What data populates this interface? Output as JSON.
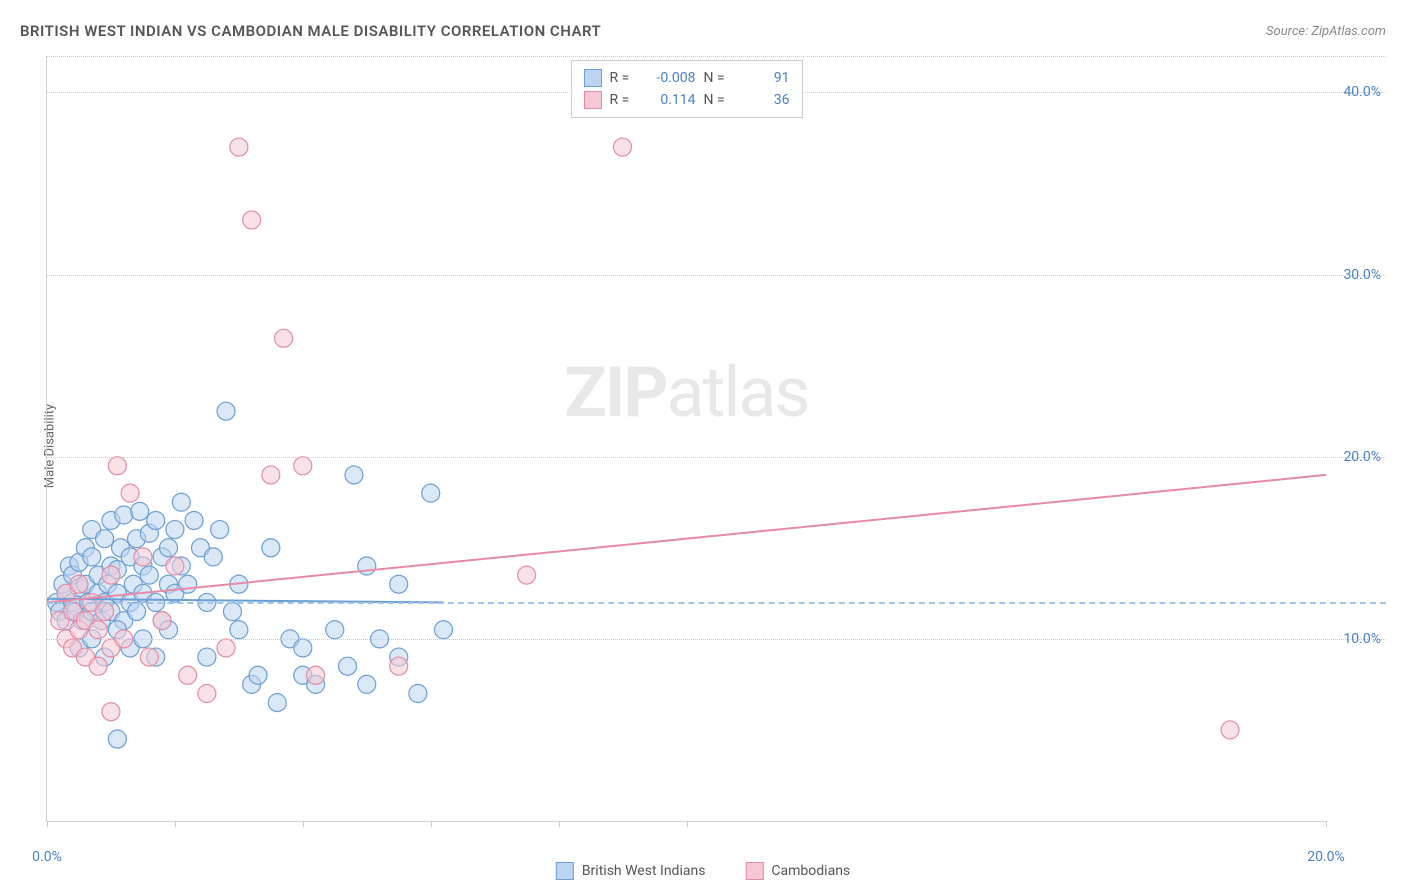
{
  "title": "BRITISH WEST INDIAN VS CAMBODIAN MALE DISABILITY CORRELATION CHART",
  "source": "Source: ZipAtlas.com",
  "watermark_bold": "ZIP",
  "watermark_light": "atlas",
  "y_axis_label": "Male Disability",
  "chart": {
    "type": "scatter",
    "xlim": [
      0,
      20
    ],
    "ylim": [
      0,
      42
    ],
    "x_ticks": [
      0,
      2,
      4,
      6,
      8,
      10,
      20
    ],
    "x_tick_labels": {
      "0": "0.0%",
      "20": "20.0%"
    },
    "y_gridlines": [
      10,
      20,
      30,
      40,
      42
    ],
    "y_tick_labels": {
      "10": "10.0%",
      "20": "20.0%",
      "30": "30.0%",
      "40": "40.0%"
    },
    "mean_line_y": 12.0,
    "background_color": "#ffffff",
    "grid_color": "#cccccc",
    "dash_color": "#9fc4e7",
    "marker_radius": 9,
    "marker_opacity": 0.55,
    "line_width": 2
  },
  "series": [
    {
      "name": "British West Indians",
      "color_fill": "#bcd4ef",
      "color_stroke": "#6a9fd4",
      "R": "-0.008",
      "N": "91",
      "trend": {
        "x1": 0,
        "y1": 12.2,
        "x2": 6.2,
        "y2": 12.0
      },
      "points": [
        [
          0.15,
          12.0
        ],
        [
          0.2,
          11.5
        ],
        [
          0.25,
          13.0
        ],
        [
          0.3,
          12.5
        ],
        [
          0.3,
          11.0
        ],
        [
          0.35,
          14.0
        ],
        [
          0.4,
          12.0
        ],
        [
          0.4,
          13.5
        ],
        [
          0.45,
          11.5
        ],
        [
          0.5,
          12.8
        ],
        [
          0.5,
          14.2
        ],
        [
          0.55,
          11.0
        ],
        [
          0.6,
          13.0
        ],
        [
          0.6,
          15.0
        ],
        [
          0.65,
          12.0
        ],
        [
          0.7,
          11.5
        ],
        [
          0.7,
          14.5
        ],
        [
          0.7,
          16.0
        ],
        [
          0.8,
          12.5
        ],
        [
          0.8,
          13.5
        ],
        [
          0.85,
          11.0
        ],
        [
          0.9,
          15.5
        ],
        [
          0.9,
          12.0
        ],
        [
          0.95,
          13.0
        ],
        [
          1.0,
          14.0
        ],
        [
          1.0,
          11.5
        ],
        [
          1.0,
          16.5
        ],
        [
          1.1,
          12.5
        ],
        [
          1.1,
          13.8
        ],
        [
          1.15,
          15.0
        ],
        [
          1.2,
          11.0
        ],
        [
          1.2,
          16.8
        ],
        [
          1.3,
          12.0
        ],
        [
          1.3,
          14.5
        ],
        [
          1.35,
          13.0
        ],
        [
          1.4,
          15.5
        ],
        [
          1.4,
          11.5
        ],
        [
          1.45,
          17.0
        ],
        [
          1.5,
          12.5
        ],
        [
          1.5,
          14.0
        ],
        [
          1.6,
          13.5
        ],
        [
          1.6,
          15.8
        ],
        [
          1.7,
          12.0
        ],
        [
          1.7,
          16.5
        ],
        [
          1.8,
          14.5
        ],
        [
          1.8,
          11.0
        ],
        [
          1.9,
          13.0
        ],
        [
          1.9,
          15.0
        ],
        [
          2.0,
          12.5
        ],
        [
          2.0,
          16.0
        ],
        [
          2.1,
          17.5
        ],
        [
          2.1,
          14.0
        ],
        [
          2.2,
          13.0
        ],
        [
          2.3,
          16.5
        ],
        [
          2.4,
          15.0
        ],
        [
          2.5,
          12.0
        ],
        [
          2.5,
          9.0
        ],
        [
          2.6,
          14.5
        ],
        [
          2.7,
          16.0
        ],
        [
          2.8,
          22.5
        ],
        [
          2.9,
          11.5
        ],
        [
          3.0,
          10.5
        ],
        [
          3.0,
          13.0
        ],
        [
          3.2,
          7.5
        ],
        [
          3.3,
          8.0
        ],
        [
          3.5,
          15.0
        ],
        [
          3.6,
          6.5
        ],
        [
          3.8,
          10.0
        ],
        [
          4.0,
          9.5
        ],
        [
          4.0,
          8.0
        ],
        [
          4.2,
          7.5
        ],
        [
          4.5,
          10.5
        ],
        [
          4.7,
          8.5
        ],
        [
          4.8,
          19.0
        ],
        [
          5.0,
          14.0
        ],
        [
          5.0,
          7.5
        ],
        [
          5.2,
          10.0
        ],
        [
          5.5,
          13.0
        ],
        [
          5.5,
          9.0
        ],
        [
          5.8,
          7.0
        ],
        [
          6.0,
          18.0
        ],
        [
          6.2,
          10.5
        ],
        [
          0.5,
          9.5
        ],
        [
          0.7,
          10.0
        ],
        [
          0.9,
          9.0
        ],
        [
          1.1,
          4.5
        ],
        [
          1.1,
          10.5
        ],
        [
          1.3,
          9.5
        ],
        [
          1.5,
          10.0
        ],
        [
          1.7,
          9.0
        ],
        [
          1.9,
          10.5
        ]
      ]
    },
    {
      "name": "Cambodians",
      "color_fill": "#f6c8d4",
      "color_stroke": "#e48ba5",
      "R": "0.114",
      "N": "36",
      "trend": {
        "x1": 0,
        "y1": 12.0,
        "x2": 20,
        "y2": 19.0
      },
      "points": [
        [
          0.2,
          11.0
        ],
        [
          0.3,
          10.0
        ],
        [
          0.3,
          12.5
        ],
        [
          0.4,
          11.5
        ],
        [
          0.4,
          9.5
        ],
        [
          0.5,
          10.5
        ],
        [
          0.5,
          13.0
        ],
        [
          0.6,
          11.0
        ],
        [
          0.6,
          9.0
        ],
        [
          0.7,
          12.0
        ],
        [
          0.8,
          10.5
        ],
        [
          0.8,
          8.5
        ],
        [
          0.9,
          11.5
        ],
        [
          1.0,
          9.5
        ],
        [
          1.0,
          13.5
        ],
        [
          1.1,
          19.5
        ],
        [
          1.2,
          10.0
        ],
        [
          1.3,
          18.0
        ],
        [
          1.5,
          14.5
        ],
        [
          1.6,
          9.0
        ],
        [
          1.8,
          11.0
        ],
        [
          2.0,
          14.0
        ],
        [
          2.2,
          8.0
        ],
        [
          2.5,
          7.0
        ],
        [
          2.8,
          9.5
        ],
        [
          3.0,
          37.0
        ],
        [
          3.2,
          33.0
        ],
        [
          3.5,
          19.0
        ],
        [
          3.7,
          26.5
        ],
        [
          4.0,
          19.5
        ],
        [
          4.2,
          8.0
        ],
        [
          5.5,
          8.5
        ],
        [
          7.5,
          13.5
        ],
        [
          9.0,
          37.0
        ],
        [
          18.5,
          5.0
        ],
        [
          1.0,
          6.0
        ]
      ]
    }
  ],
  "legend_top": {
    "r_label": "R =",
    "n_label": "N ="
  },
  "legend_bottom": [
    {
      "swatch_fill": "#bcd4ef",
      "swatch_stroke": "#6a9fd4",
      "label": "British West Indians"
    },
    {
      "swatch_fill": "#f6c8d4",
      "swatch_stroke": "#e48ba5",
      "label": "Cambodians"
    }
  ]
}
